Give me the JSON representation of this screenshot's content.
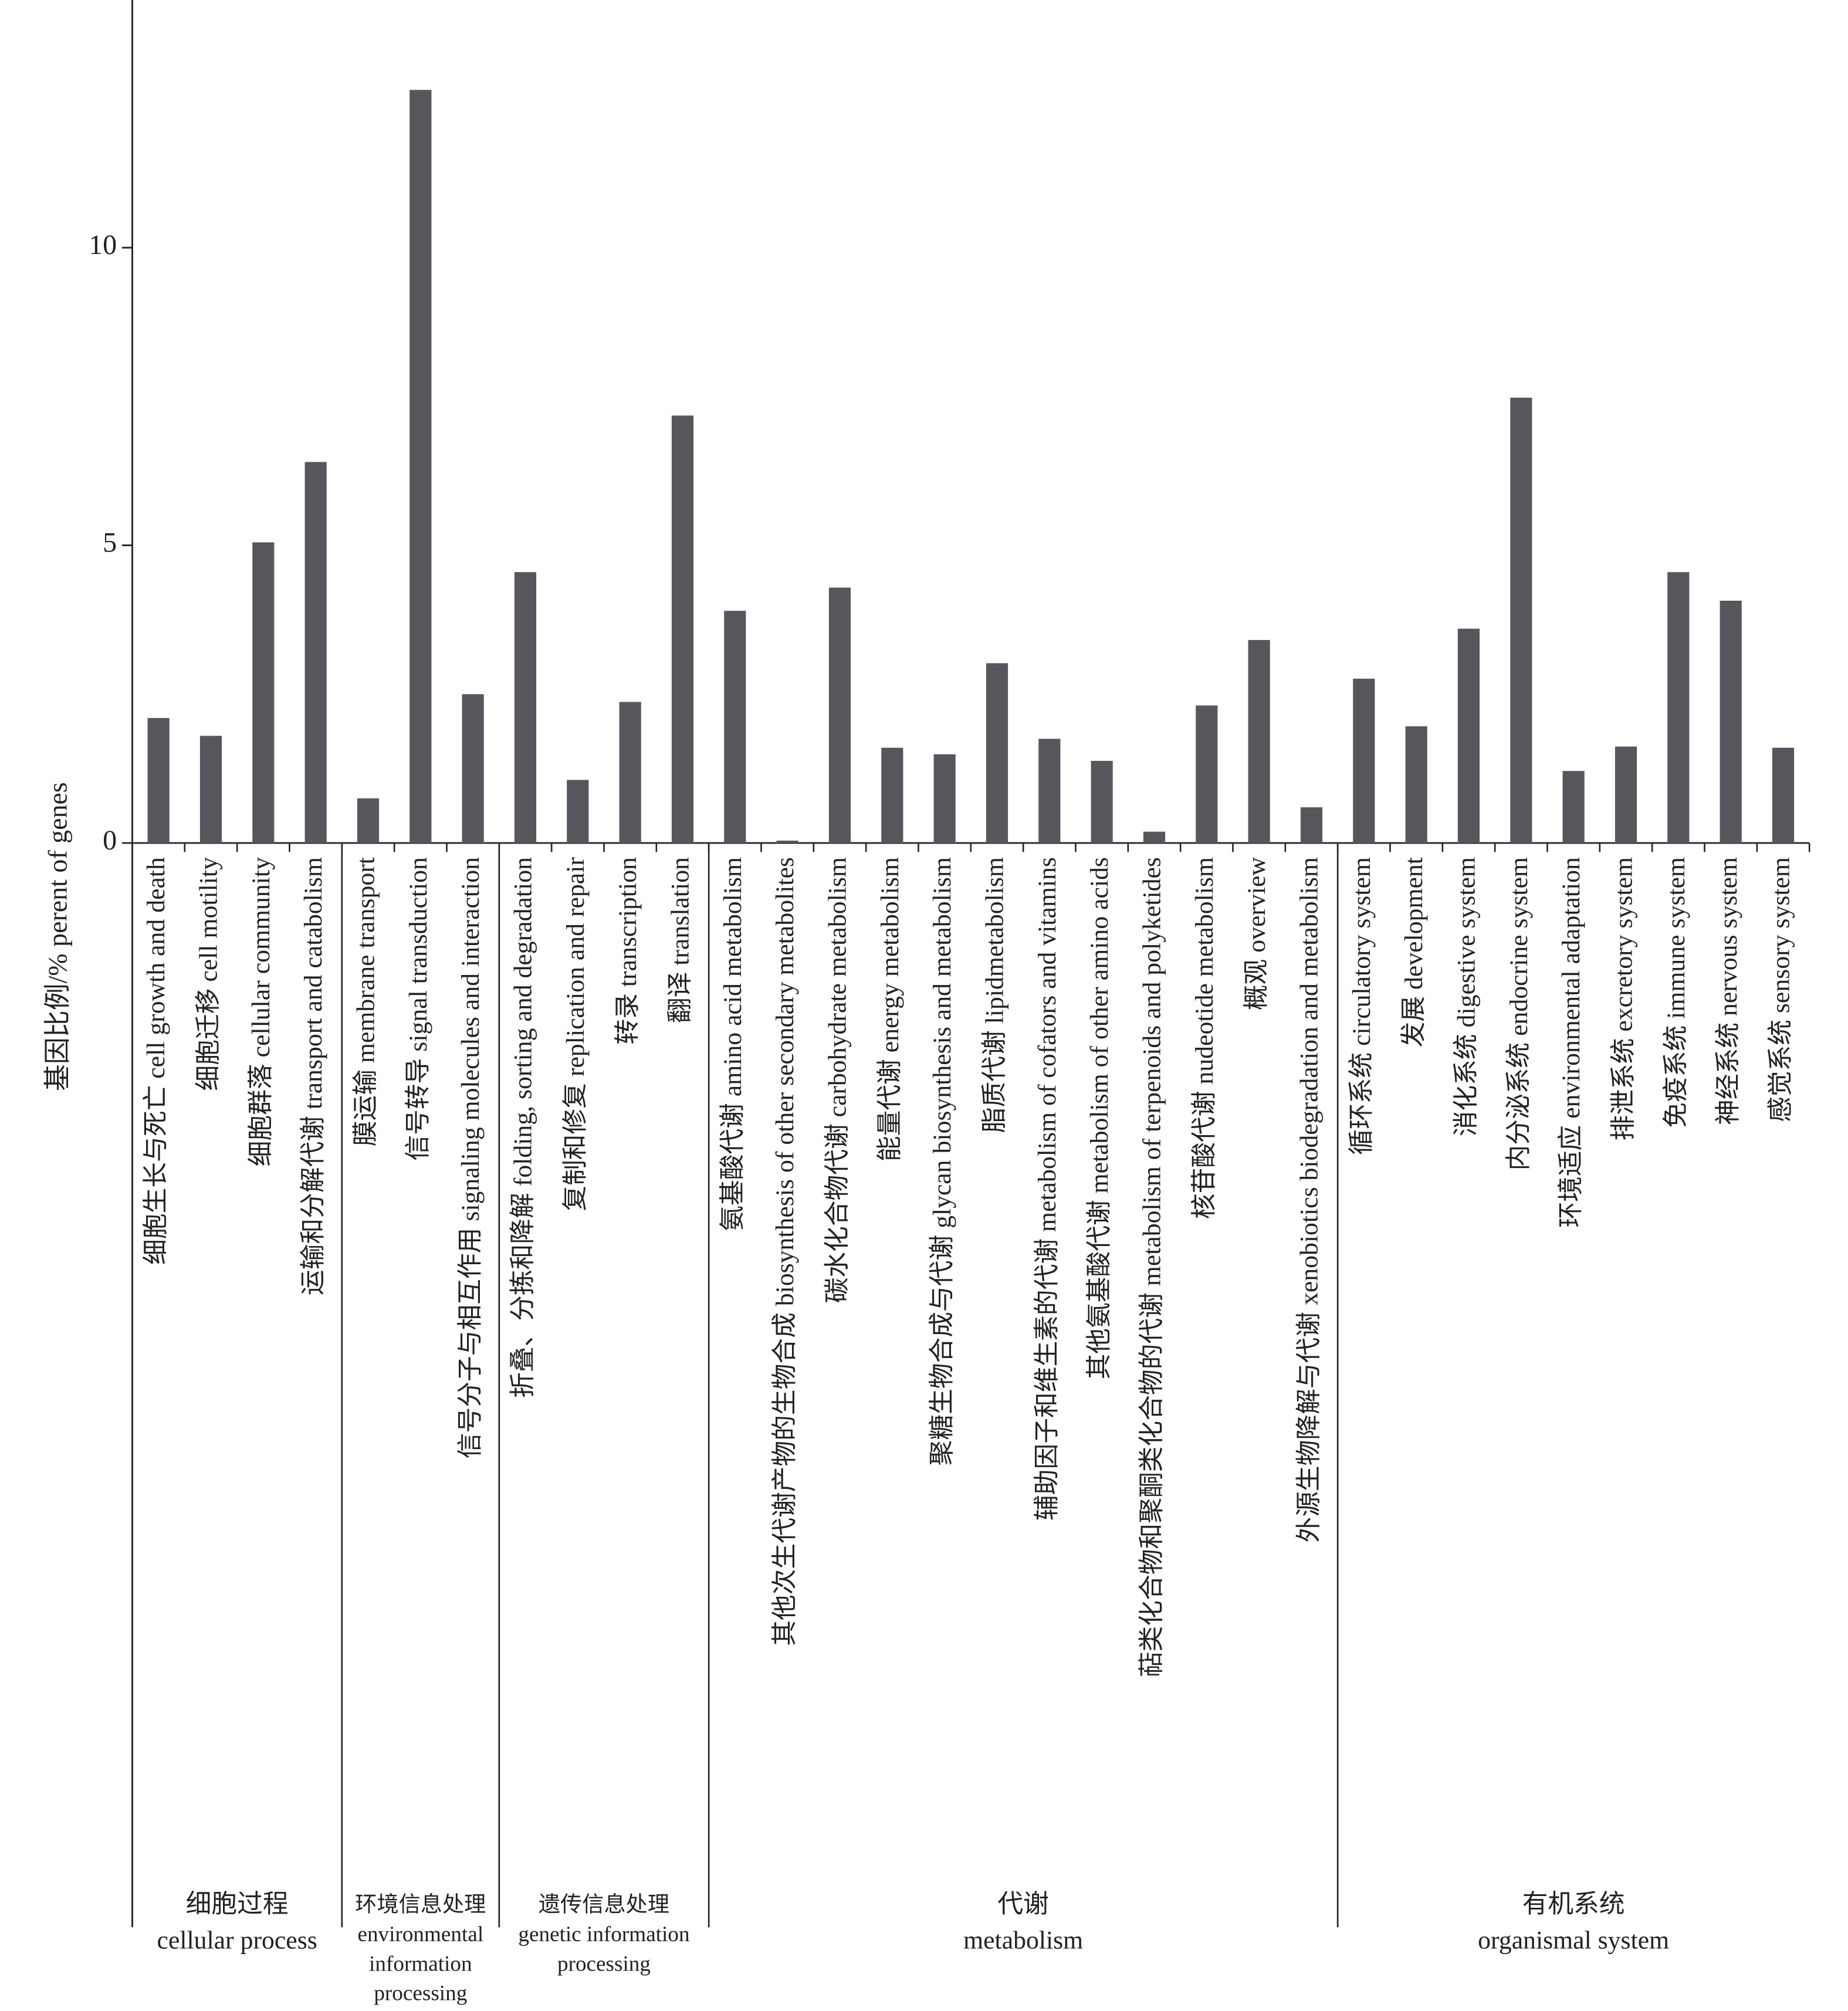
{
  "chart_data": {
    "type": "bar",
    "y_label": "基因比例/% perent of genes",
    "color": "#55575c",
    "ylim": [
      0,
      14.16
    ],
    "yticks": [
      0,
      5,
      10
    ],
    "groups": [
      {
        "labels": [
          "细胞过程",
          "cellular process"
        ],
        "categories": [
          "细胞生长与死亡 cell growth and death",
          "细胞迁移 cell motility",
          "细胞群落 cellular community",
          "运输和分解代谢 transport and catabolism"
        ],
        "values": [
          2.1,
          1.8,
          5.05,
          6.4
        ]
      },
      {
        "labels": [
          "环境信息处理",
          "environmental",
          "information",
          "processing"
        ],
        "categories": [
          "膜运输 membrane transport",
          "信号转导 signal transduction",
          "信号分子与相互作用 signaling molecules and interaction"
        ],
        "values": [
          0.75,
          12.65,
          2.5
        ]
      },
      {
        "labels": [
          "遗传信息处理",
          "genetic information",
          "processing"
        ],
        "categories": [
          "折叠、分拣和降解 folding, sorting and degradation",
          "复制和修复 replication and repair",
          "转录 transcription",
          "翻译 translation"
        ],
        "values": [
          4.55,
          1.06,
          2.37,
          7.18
        ]
      },
      {
        "labels": [
          "代谢",
          "metabolism"
        ],
        "categories": [
          "氨基酸代谢 amino acid metabolism",
          "其他次生代谢产物的生物合成 biosynthesis of other secondary metabolites",
          "碳水化合物代谢 carbohydrate metabolism",
          "能量代谢 energy metabolism",
          "聚糖生物合成与代谢 glycan biosynthesis and metabolism",
          "脂质代谢 lipidmetabolism",
          "辅助因子和维生素的代谢 metabolism of cofators and vitamins",
          "其他氨基酸代谢 metabolism of other amino acids",
          "萜类化合物和聚酮类化合物的代谢 metabolism of terpenoids and polyketides",
          "核苷酸代谢 nudeotide metabolism",
          "概观 overview",
          "外源生物降解与代谢 xenobiotics biodegradation and metabolism"
        ],
        "values": [
          3.9,
          0.04,
          4.29,
          1.6,
          1.49,
          3.02,
          1.75,
          1.38,
          0.19,
          2.31,
          3.41,
          0.6
        ]
      },
      {
        "labels": [
          "有机系统",
          "organismal system"
        ],
        "categories": [
          "循环系统 circulatory system",
          "发展 development",
          "消化系统 digestive system",
          "内分泌系统 endocrine system",
          "环境适应 environmental adaptation",
          "排泄系统 excretory system",
          "免疫系统 immune system",
          "神经系统 nervous system",
          "感觉系统 sensory system"
        ],
        "values": [
          2.76,
          1.96,
          3.6,
          7.48,
          1.21,
          1.62,
          4.55,
          4.07,
          1.6
        ]
      }
    ]
  }
}
